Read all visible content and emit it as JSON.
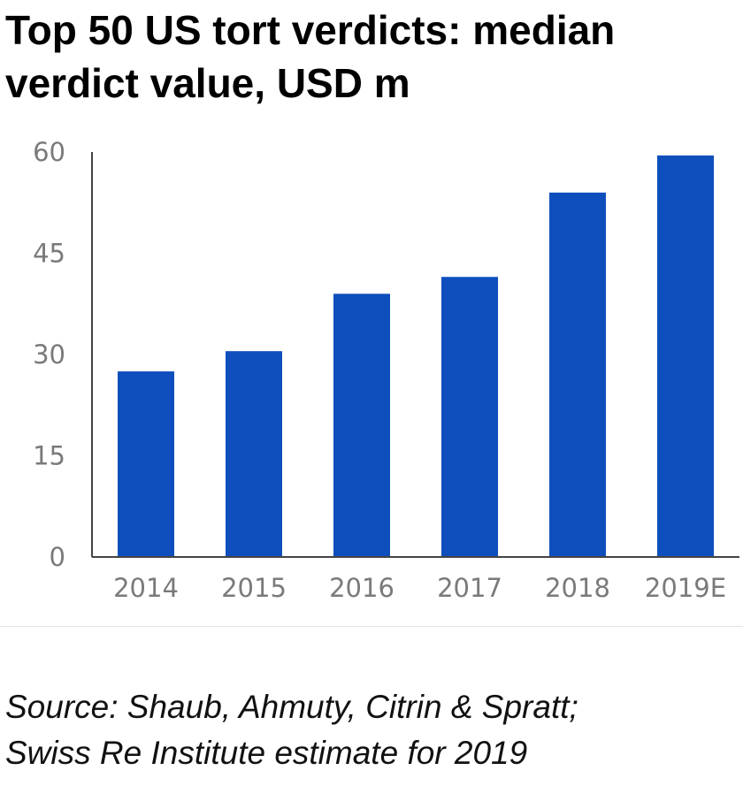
{
  "title_lines": [
    "Top 50 US tort verdicts: median",
    "verdict value, USD m"
  ],
  "source_lines": [
    "Source: Shaub, Ahmuty, Citrin & Spratt;",
    "Swiss Re Institute estimate for 2019"
  ],
  "colors": {
    "bar": "#0f4fbd",
    "axis": "#444444",
    "tick_text": "#7a7a7a"
  },
  "chart_data": {
    "type": "bar",
    "title": "Top 50 US tort verdicts: median verdict value, USD m",
    "xlabel": "",
    "ylabel": "",
    "categories": [
      "2014",
      "2015",
      "2016",
      "2017",
      "2018",
      "2019E"
    ],
    "values": [
      27.5,
      30.5,
      39,
      41.5,
      54,
      59.5
    ],
    "ylim": [
      0,
      60
    ],
    "yticks": [
      "0",
      "15",
      "30",
      "45",
      "60"
    ],
    "grid": false,
    "legend": "none"
  }
}
